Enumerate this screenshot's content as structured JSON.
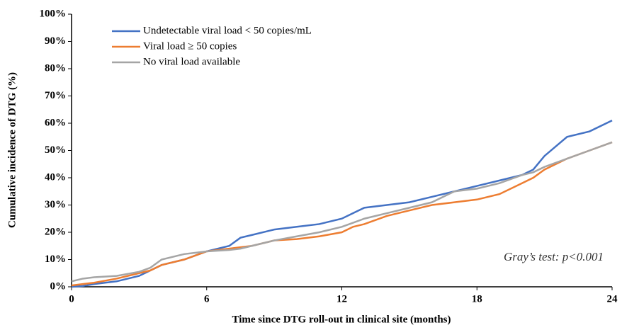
{
  "chart_data": {
    "type": "line",
    "xlabel": "Time since DTG roll-out in clinical site (months)",
    "ylabel": "Cumulative incidence of DTG (%)",
    "annotation": "Gray’s test: p<0.001",
    "x": [
      0,
      0.5,
      1,
      2,
      3,
      3.5,
      4,
      5,
      6,
      7,
      7.5,
      8,
      9,
      10,
      11,
      12,
      12.5,
      13,
      14,
      15,
      16,
      17,
      18,
      19,
      20,
      20.5,
      21,
      22,
      23,
      24
    ],
    "series": [
      {
        "name": "Undetectable viral load < 50 copies/mL",
        "color": "#4472c4",
        "values": [
          0,
          0.3,
          1,
          2,
          4,
          6,
          8,
          10,
          13,
          15,
          18,
          19,
          21,
          22,
          23,
          25,
          27,
          29,
          30,
          31,
          33,
          35,
          37,
          39,
          41,
          43,
          48,
          55,
          57,
          61
        ]
      },
      {
        "name": "Viral load ≥ 50 copies",
        "color": "#ed7d31",
        "values": [
          0.5,
          1,
          1.5,
          3,
          5,
          6,
          8,
          10,
          13,
          14,
          14.5,
          15,
          17,
          17.5,
          18.5,
          20,
          22,
          23,
          26,
          28,
          30,
          31,
          32,
          34,
          38,
          40,
          43,
          47,
          50,
          53
        ]
      },
      {
        "name": "No viral load available",
        "color": "#a5a5a5",
        "values": [
          2,
          3,
          3.5,
          4,
          5.5,
          7,
          10,
          12,
          13,
          13.5,
          14,
          15,
          17,
          18.5,
          20,
          22,
          23.5,
          25,
          27,
          29,
          31,
          35,
          36,
          38,
          41,
          42,
          44,
          47,
          50,
          53
        ]
      }
    ],
    "xlim": [
      0,
      24
    ],
    "xticks": [
      0,
      6,
      12,
      18,
      24
    ],
    "ylim": [
      0,
      100
    ],
    "yticks": [
      {
        "value": 0,
        "label": "0%"
      },
      {
        "value": 10,
        "label": "10%"
      },
      {
        "value": 20,
        "label": "20%"
      },
      {
        "value": 30,
        "label": "30%"
      },
      {
        "value": 40,
        "label": "40%"
      },
      {
        "value": 50,
        "label": "50%"
      },
      {
        "value": 60,
        "label": "60%"
      },
      {
        "value": 70,
        "label": "70%"
      },
      {
        "value": 80,
        "label": "80%"
      },
      {
        "value": 90,
        "label": "90%"
      },
      {
        "value": 100,
        "label": "100%"
      }
    ],
    "grid": false,
    "legend": "upper left"
  }
}
